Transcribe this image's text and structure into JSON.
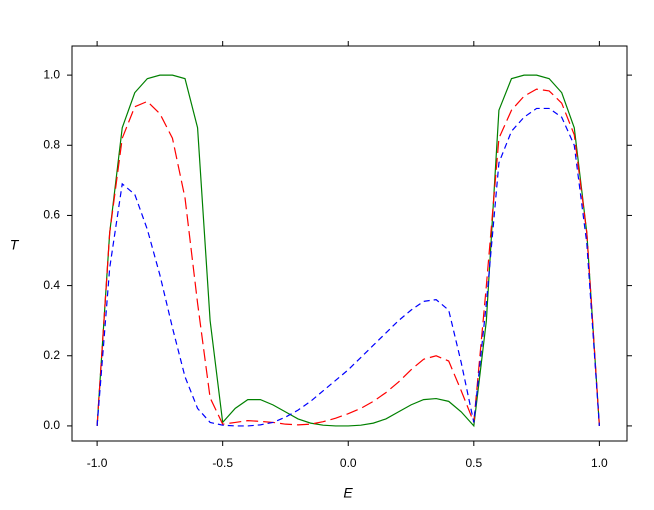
{
  "chart_data": {
    "type": "line",
    "x_label": "E",
    "y_label": "T",
    "x": [
      -1.0,
      -0.95,
      -0.9,
      -0.85,
      -0.8,
      -0.75,
      -0.7,
      -0.65,
      -0.6,
      -0.55,
      -0.5,
      -0.45,
      -0.4,
      -0.35,
      -0.3,
      -0.25,
      -0.2,
      -0.15,
      -0.1,
      -0.05,
      0.0,
      0.05,
      0.1,
      0.15,
      0.2,
      0.25,
      0.3,
      0.35,
      0.4,
      0.45,
      0.5,
      0.55,
      0.6,
      0.65,
      0.7,
      0.75,
      0.8,
      0.85,
      0.9,
      0.95,
      1.0
    ],
    "series": [
      {
        "color": "#008000",
        "dash": "none",
        "values": [
          0,
          0.55,
          0.85,
          0.95,
          0.99,
          1.0,
          1.0,
          0.99,
          0.85,
          0.3,
          0.01,
          0.05,
          0.075,
          0.075,
          0.06,
          0.04,
          0.02,
          0.008,
          0.002,
          0.0,
          0.0,
          0.002,
          0.008,
          0.02,
          0.04,
          0.06,
          0.075,
          0.078,
          0.07,
          0.04,
          0.0,
          0.3,
          0.9,
          0.99,
          1.0,
          1.0,
          0.99,
          0.95,
          0.85,
          0.55,
          0
        ]
      },
      {
        "color": "#ff0000",
        "dash": "12,5",
        "values": [
          0,
          0.55,
          0.82,
          0.91,
          0.925,
          0.89,
          0.82,
          0.65,
          0.35,
          0.08,
          0.005,
          0.01,
          0.015,
          0.013,
          0.01,
          0.005,
          0.003,
          0.005,
          0.012,
          0.022,
          0.035,
          0.05,
          0.07,
          0.095,
          0.125,
          0.16,
          0.19,
          0.2,
          0.185,
          0.1,
          0.01,
          0.4,
          0.82,
          0.9,
          0.94,
          0.96,
          0.955,
          0.92,
          0.83,
          0.55,
          0
        ]
      },
      {
        "color": "#0000ff",
        "dash": "6,4",
        "values": [
          0,
          0.45,
          0.69,
          0.66,
          0.56,
          0.43,
          0.28,
          0.14,
          0.05,
          0.01,
          0.002,
          0.0,
          0.0,
          0.003,
          0.01,
          0.025,
          0.045,
          0.07,
          0.1,
          0.13,
          0.16,
          0.195,
          0.23,
          0.265,
          0.3,
          0.33,
          0.355,
          0.36,
          0.33,
          0.18,
          0.01,
          0.35,
          0.75,
          0.84,
          0.88,
          0.905,
          0.905,
          0.88,
          0.8,
          0.52,
          0
        ]
      }
    ],
    "xlim": [
      -1.1,
      1.11
    ],
    "ylim": [
      -0.043,
      1.083
    ],
    "xticks": [
      {
        "value": -1.0,
        "label": "-1.0"
      },
      {
        "value": -0.5,
        "label": "-0.5"
      },
      {
        "value": 0.0,
        "label": "0.0"
      },
      {
        "value": 0.5,
        "label": "0.5"
      },
      {
        "value": 1.0,
        "label": "1.0"
      }
    ],
    "yticks": [
      {
        "value": 0.0,
        "label": "0.0"
      },
      {
        "value": 0.2,
        "label": "0.2"
      },
      {
        "value": 0.4,
        "label": "0.4"
      },
      {
        "value": 0.6,
        "label": "0.6"
      },
      {
        "value": 0.8,
        "label": "0.8"
      },
      {
        "value": 1.0,
        "label": "1.0"
      }
    ]
  }
}
